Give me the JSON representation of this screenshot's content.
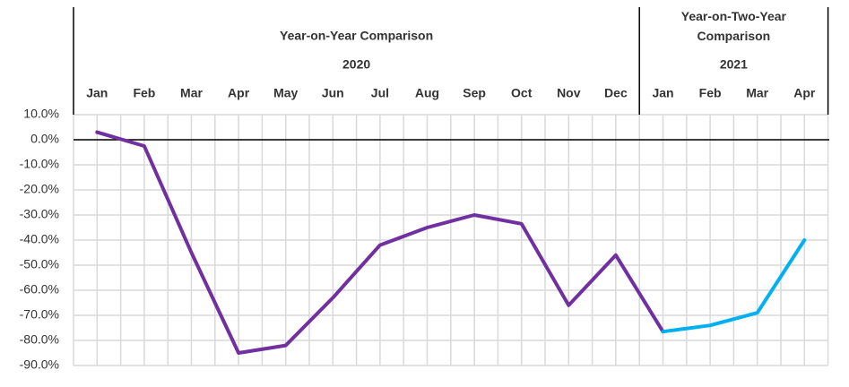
{
  "chart_data": {
    "type": "line",
    "groups": [
      {
        "title": "Year-on-Year Comparison",
        "year": "2020"
      },
      {
        "title": "Year-on-Two-Year Comparison",
        "year": "2021"
      }
    ],
    "categories": [
      "Jan",
      "Feb",
      "Mar",
      "Apr",
      "May",
      "Jun",
      "Jul",
      "Aug",
      "Sep",
      "Oct",
      "Nov",
      "Dec",
      "Jan",
      "Feb",
      "Mar",
      "Apr"
    ],
    "series": [
      {
        "color": "#7030a0",
        "values": [
          3,
          -2.5,
          -45,
          -85,
          -82,
          -63,
          -42,
          -35,
          -30,
          -33.5,
          -66,
          -46,
          -76.5,
          null,
          null,
          null
        ]
      },
      {
        "color": "#00b0f0",
        "values": [
          null,
          null,
          null,
          null,
          null,
          null,
          null,
          null,
          null,
          null,
          null,
          null,
          -76.5,
          -74,
          -69,
          -40
        ]
      }
    ],
    "ylim": [
      -90,
      10
    ],
    "yticks": [
      {
        "value": 10,
        "label": "10.0%"
      },
      {
        "value": 0,
        "label": "0.0%"
      },
      {
        "value": -10,
        "label": "-10.0%"
      },
      {
        "value": -20,
        "label": "-20.0%"
      },
      {
        "value": -30,
        "label": "-30.0%"
      },
      {
        "value": -40,
        "label": "-40.0%"
      },
      {
        "value": -50,
        "label": "-50.0%"
      },
      {
        "value": -60,
        "label": "-60.0%"
      },
      {
        "value": -70,
        "label": "-70.0%"
      },
      {
        "value": -80,
        "label": "-80.0%"
      },
      {
        "value": -90,
        "label": "-90.0%"
      }
    ],
    "grid": true
  }
}
